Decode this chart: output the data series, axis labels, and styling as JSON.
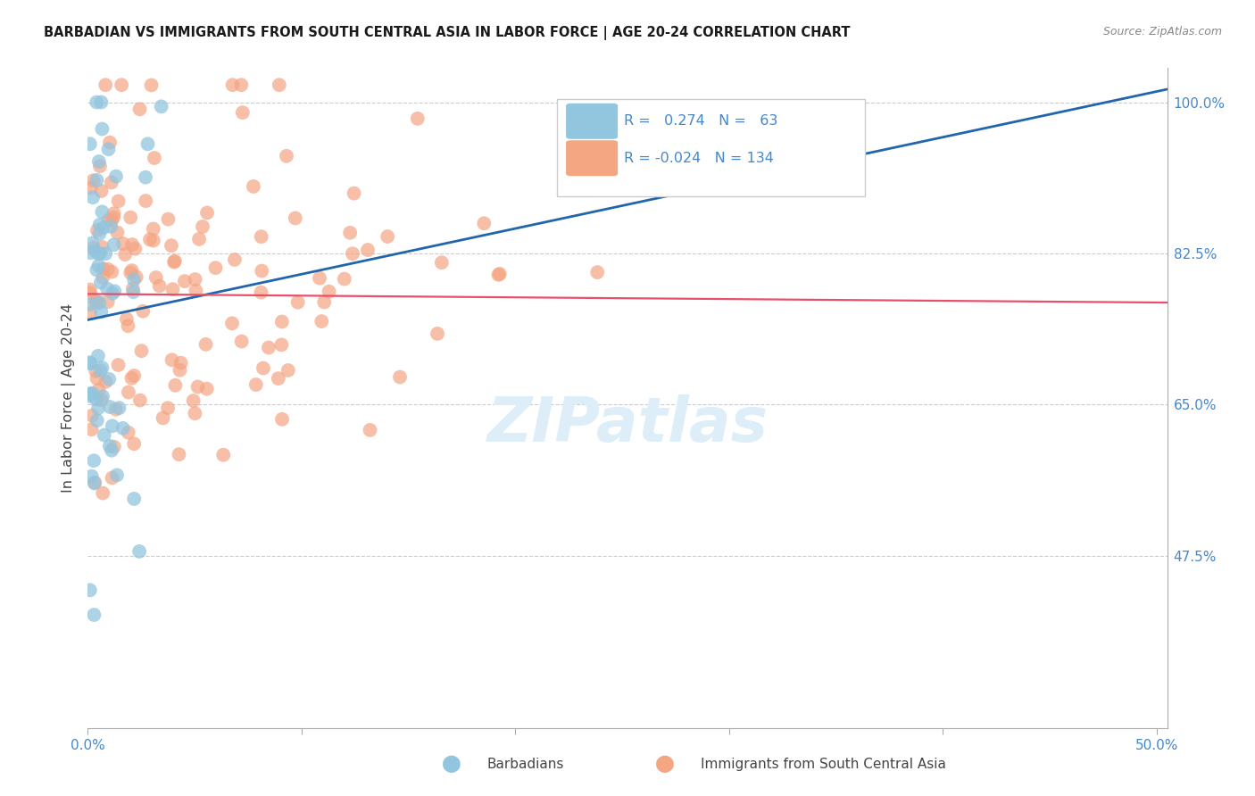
{
  "title": "BARBADIAN VS IMMIGRANTS FROM SOUTH CENTRAL ASIA IN LABOR FORCE | AGE 20-24 CORRELATION CHART",
  "source": "Source: ZipAtlas.com",
  "ylabel": "In Labor Force | Age 20-24",
  "xmin": 0.0,
  "xmax": 0.505,
  "ymin": 0.275,
  "ymax": 1.04,
  "ytick_positions": [
    0.475,
    0.65,
    0.825,
    1.0
  ],
  "yticklabels_right": [
    "47.5%",
    "65.0%",
    "82.5%",
    "100.0%"
  ],
  "xtick_positions": [
    0.0,
    0.1,
    0.2,
    0.3,
    0.4,
    0.5
  ],
  "xticklabels": [
    "0.0%",
    "",
    "",
    "",
    "",
    "50.0%"
  ],
  "legend_blue_r": "0.274",
  "legend_blue_n": "63",
  "legend_pink_r": "-0.024",
  "legend_pink_n": "134",
  "legend_label_blue": "Barbadians",
  "legend_label_pink": "Immigrants from South Central Asia",
  "blue_color": "#92c5de",
  "pink_color": "#f4a582",
  "blue_line_color": "#2166ac",
  "pink_line_color": "#e8506a",
  "watermark_color": "#ddeef8",
  "title_color": "#1a1a1a",
  "source_color": "#888888",
  "axis_label_color": "#444444",
  "tick_color": "#4488cc",
  "grid_color": "#cccccc",
  "blue_line_x0": 0.0,
  "blue_line_y0": 0.748,
  "blue_line_x1": 0.505,
  "blue_line_y1": 1.015,
  "pink_line_x0": 0.0,
  "pink_line_y0": 0.778,
  "pink_line_x1": 0.505,
  "pink_line_y1": 0.768
}
